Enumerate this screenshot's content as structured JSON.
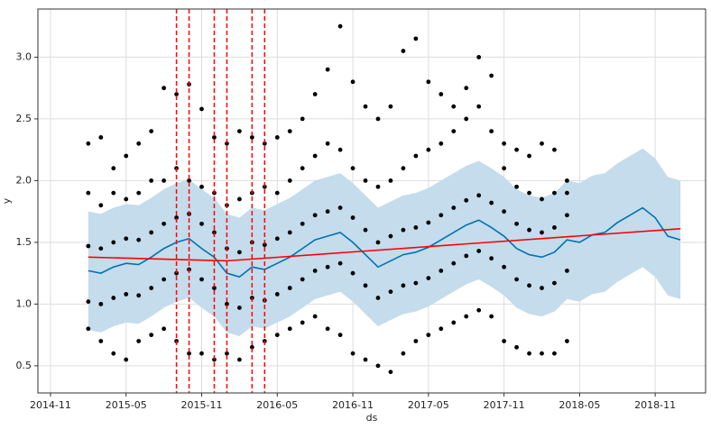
{
  "chart_data": {
    "type": "line",
    "xlabel": "ds",
    "ylabel": "y",
    "xlim": [
      "2014-10",
      "2019-03"
    ],
    "ylim": [
      0.28,
      3.39
    ],
    "xticks": [
      "2014-11",
      "2015-05",
      "2015-11",
      "2016-05",
      "2016-11",
      "2017-05",
      "2017-11",
      "2018-05",
      "2018-11"
    ],
    "yticks": [
      0.5,
      {
        "value": 1,
        "label": "1.0"
      },
      1.5,
      {
        "value": 2,
        "label": "2.0"
      },
      2.5,
      {
        "value": 3,
        "label": "3.0"
      }
    ],
    "grid": true,
    "observed": {
      "color": "#000000",
      "x": [
        "2015-02",
        "2015-03",
        "2015-04",
        "2015-05",
        "2015-06",
        "2015-07",
        "2015-08",
        "2015-09",
        "2015-10",
        "2015-11",
        "2015-12",
        "2016-01",
        "2016-02",
        "2016-03",
        "2016-04",
        "2016-05",
        "2016-06",
        "2016-07",
        "2016-08",
        "2016-09",
        "2016-10",
        "2016-11",
        "2016-12",
        "2017-01",
        "2017-02",
        "2017-03",
        "2017-04",
        "2017-05",
        "2017-06",
        "2017-07",
        "2017-08",
        "2017-09",
        "2017-10",
        "2017-11",
        "2017-12",
        "2018-01",
        "2018-02",
        "2018-03",
        "2018-04"
      ],
      "y": [
        [
          0.8,
          1.02,
          1.47,
          1.9,
          2.3
        ],
        [
          0.7,
          1.0,
          1.45,
          1.8,
          2.35
        ],
        [
          0.6,
          1.05,
          1.5,
          1.9,
          2.1
        ],
        [
          0.55,
          1.08,
          1.53,
          1.85,
          2.2
        ],
        [
          0.7,
          1.07,
          1.52,
          1.9,
          2.3
        ],
        [
          0.75,
          1.13,
          1.58,
          2.0,
          2.4
        ],
        [
          0.8,
          1.2,
          1.65,
          2.0,
          2.75
        ],
        [
          0.7,
          1.25,
          1.7,
          2.1,
          2.7
        ],
        [
          0.6,
          1.28,
          1.73,
          2.0,
          2.78
        ],
        [
          0.6,
          1.2,
          1.65,
          1.95,
          2.58
        ],
        [
          0.55,
          1.13,
          1.58,
          1.9,
          2.35
        ],
        [
          0.6,
          1.0,
          1.45,
          1.8,
          2.3
        ],
        [
          0.55,
          0.97,
          1.42,
          1.85,
          2.4
        ],
        [
          0.65,
          1.05,
          1.5,
          1.9,
          2.35
        ],
        [
          0.7,
          1.03,
          1.48,
          1.95,
          2.3
        ],
        [
          0.75,
          1.08,
          1.53,
          1.9,
          2.35
        ],
        [
          0.8,
          1.13,
          1.58,
          2.0,
          2.4
        ],
        [
          0.85,
          1.2,
          1.65,
          2.1,
          2.5
        ],
        [
          0.9,
          1.27,
          1.72,
          2.2,
          2.7
        ],
        [
          0.8,
          1.3,
          1.75,
          2.3,
          2.9
        ],
        [
          0.75,
          1.33,
          1.78,
          2.25,
          3.25
        ],
        [
          0.6,
          1.25,
          1.7,
          2.1,
          2.8
        ],
        [
          0.55,
          1.15,
          1.6,
          2.0,
          2.6
        ],
        [
          0.5,
          1.05,
          1.5,
          1.95,
          2.5
        ],
        [
          0.45,
          1.1,
          1.55,
          2.0,
          2.6
        ],
        [
          0.6,
          1.15,
          1.6,
          2.1,
          3.05
        ],
        [
          0.7,
          1.17,
          1.62,
          2.2,
          3.15
        ],
        [
          0.75,
          1.21,
          1.66,
          2.25,
          2.8
        ],
        [
          0.8,
          1.27,
          1.72,
          2.3,
          2.7
        ],
        [
          0.85,
          1.33,
          1.78,
          2.4,
          2.6
        ],
        [
          0.9,
          1.39,
          1.84,
          2.5,
          2.75
        ],
        [
          0.95,
          1.43,
          1.88,
          2.6,
          3.0
        ],
        [
          0.9,
          1.37,
          1.82,
          2.4,
          2.85
        ],
        [
          0.7,
          1.3,
          1.75,
          2.1,
          2.3
        ],
        [
          0.65,
          1.2,
          1.65,
          1.95,
          2.25
        ],
        [
          0.6,
          1.15,
          1.6,
          1.9,
          2.2
        ],
        [
          0.6,
          1.13,
          1.58,
          1.85,
          2.3
        ],
        [
          0.6,
          1.17,
          1.62,
          1.9,
          2.25
        ],
        [
          0.7,
          1.27,
          1.72,
          1.9,
          2.0
        ]
      ]
    },
    "forecast": {
      "color": "#0072b2",
      "band_color": "#c4dcec",
      "x": [
        "2015-02",
        "2015-03",
        "2015-04",
        "2015-05",
        "2015-06",
        "2015-07",
        "2015-08",
        "2015-09",
        "2015-10",
        "2015-11",
        "2015-12",
        "2016-01",
        "2016-02",
        "2016-03",
        "2016-04",
        "2016-05",
        "2016-06",
        "2016-07",
        "2016-08",
        "2016-09",
        "2016-10",
        "2016-11",
        "2016-12",
        "2017-01",
        "2017-02",
        "2017-03",
        "2017-04",
        "2017-05",
        "2017-06",
        "2017-07",
        "2017-08",
        "2017-09",
        "2017-10",
        "2017-11",
        "2017-12",
        "2018-01",
        "2018-02",
        "2018-03",
        "2018-04",
        "2018-05",
        "2018-06",
        "2018-07",
        "2018-08",
        "2018-09",
        "2018-10",
        "2018-11",
        "2018-12",
        "2019-01"
      ],
      "values": [
        1.27,
        1.25,
        1.3,
        1.33,
        1.32,
        1.38,
        1.45,
        1.5,
        1.53,
        1.45,
        1.38,
        1.25,
        1.22,
        1.3,
        1.28,
        1.33,
        1.38,
        1.45,
        1.52,
        1.55,
        1.58,
        1.5,
        1.4,
        1.3,
        1.35,
        1.4,
        1.42,
        1.46,
        1.52,
        1.58,
        1.64,
        1.68,
        1.62,
        1.55,
        1.45,
        1.4,
        1.38,
        1.42,
        1.52,
        1.5,
        1.56,
        1.58,
        1.66,
        1.72,
        1.78,
        1.7,
        1.55,
        1.52
      ],
      "upper": [
        1.75,
        1.73,
        1.78,
        1.81,
        1.8,
        1.86,
        1.93,
        1.98,
        2.01,
        1.93,
        1.86,
        1.73,
        1.7,
        1.78,
        1.76,
        1.81,
        1.86,
        1.93,
        2.0,
        2.03,
        2.06,
        1.98,
        1.88,
        1.78,
        1.83,
        1.88,
        1.9,
        1.94,
        2.0,
        2.06,
        2.12,
        2.16,
        2.1,
        2.03,
        1.93,
        1.88,
        1.86,
        1.9,
        2.0,
        1.98,
        2.04,
        2.06,
        2.14,
        2.2,
        2.26,
        2.18,
        2.03,
        2.0
      ],
      "lower": [
        0.79,
        0.77,
        0.82,
        0.85,
        0.84,
        0.9,
        0.97,
        1.02,
        1.05,
        0.97,
        0.9,
        0.77,
        0.74,
        0.82,
        0.8,
        0.85,
        0.9,
        0.97,
        1.04,
        1.07,
        1.1,
        1.02,
        0.92,
        0.82,
        0.87,
        0.92,
        0.94,
        0.98,
        1.04,
        1.1,
        1.16,
        1.2,
        1.14,
        1.07,
        0.97,
        0.92,
        0.9,
        0.94,
        1.04,
        1.02,
        1.08,
        1.1,
        1.18,
        1.24,
        1.3,
        1.22,
        1.07,
        1.04
      ]
    },
    "trend": {
      "color": "#ff0000",
      "x": [
        "2015-02",
        "2016-01",
        "2019-01"
      ],
      "values": [
        1.38,
        1.35,
        1.61
      ]
    },
    "changepoints": {
      "color": "#ff0000",
      "x": [
        "2015-09",
        "2015-10",
        "2015-12",
        "2016-01",
        "2016-03",
        "2016-04"
      ]
    }
  }
}
